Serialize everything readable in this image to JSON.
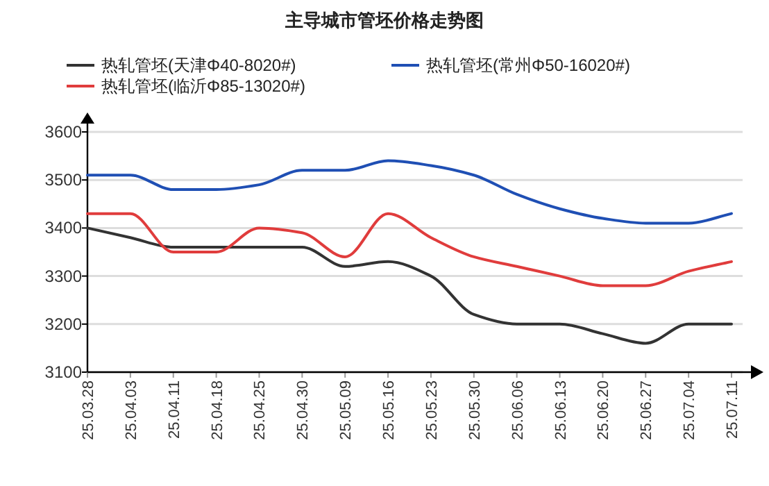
{
  "chart_data": {
    "type": "line",
    "title": "主导城市管坯价格走势图",
    "categories": [
      "25.03.28",
      "25.04.03",
      "25.04.11",
      "25.04.18",
      "25.04.25",
      "25.04.30",
      "25.05.09",
      "25.05.16",
      "25.05.23",
      "25.05.30",
      "25.06.06",
      "25.06.13",
      "25.06.20",
      "25.06.27",
      "25.07.04",
      "25.07.11"
    ],
    "series": [
      {
        "name": "热轧管坯(天津Φ40-8020#)",
        "color": "#333333",
        "values": [
          3400,
          3380,
          3360,
          3360,
          3360,
          3360,
          3320,
          3330,
          3300,
          3220,
          3200,
          3200,
          3180,
          3160,
          3200,
          3200
        ]
      },
      {
        "name": "热轧管坯(常州Φ50-16020#)",
        "color": "#1f4fb4",
        "values": [
          3510,
          3510,
          3480,
          3480,
          3490,
          3520,
          3520,
          3540,
          3530,
          3510,
          3470,
          3440,
          3420,
          3410,
          3410,
          3430
        ]
      },
      {
        "name": "热轧管坯(临沂Φ85-13020#)",
        "color": "#e03c3c",
        "values": [
          3430,
          3430,
          3350,
          3350,
          3400,
          3390,
          3340,
          3430,
          3380,
          3340,
          3320,
          3300,
          3280,
          3280,
          3310,
          3330
        ]
      }
    ],
    "ylim": [
      3100,
      3600
    ],
    "yticks": [
      3100,
      3200,
      3300,
      3400,
      3500,
      3600
    ],
    "grid": "y",
    "legend": "top",
    "marker": "none",
    "line_style": "solid"
  }
}
